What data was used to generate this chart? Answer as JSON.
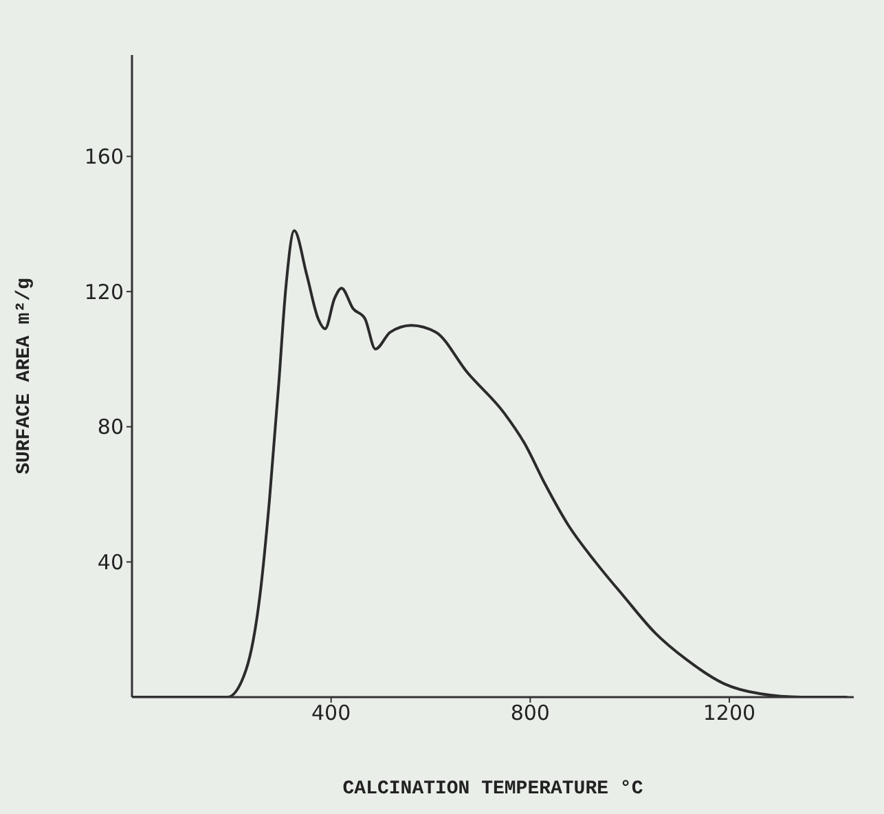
{
  "chart_data": {
    "type": "line",
    "xlabel": "CALCINATION TEMPERATURE °C",
    "ylabel": "SURFACE AREA m²/g",
    "x": [
      0,
      192,
      229,
      257,
      276,
      295,
      309,
      326,
      351,
      374,
      388,
      407,
      421,
      444,
      468,
      489,
      519,
      561,
      610,
      674,
      748,
      789,
      830,
      876,
      931,
      987,
      1051,
      1115,
      1189,
      1262,
      1345,
      1437
    ],
    "series": [
      {
        "color": "#2b2b2b",
        "values": [
          0,
          0,
          8,
          30,
          58,
          93,
          121,
          138,
          125,
          112,
          109,
          118,
          121,
          115,
          112,
          103,
          108,
          110,
          108,
          96,
          84,
          75,
          63,
          51,
          40,
          30,
          19,
          11,
          4,
          1,
          0,
          0
        ]
      }
    ],
    "xlim": [
      0,
      1450
    ],
    "xticks": [
      400,
      800,
      1200
    ],
    "ylim": [
      0,
      190
    ],
    "yticks": [
      40,
      80,
      120,
      160
    ],
    "grid": false,
    "legend": false,
    "marker": "none",
    "line_style": "solid"
  }
}
